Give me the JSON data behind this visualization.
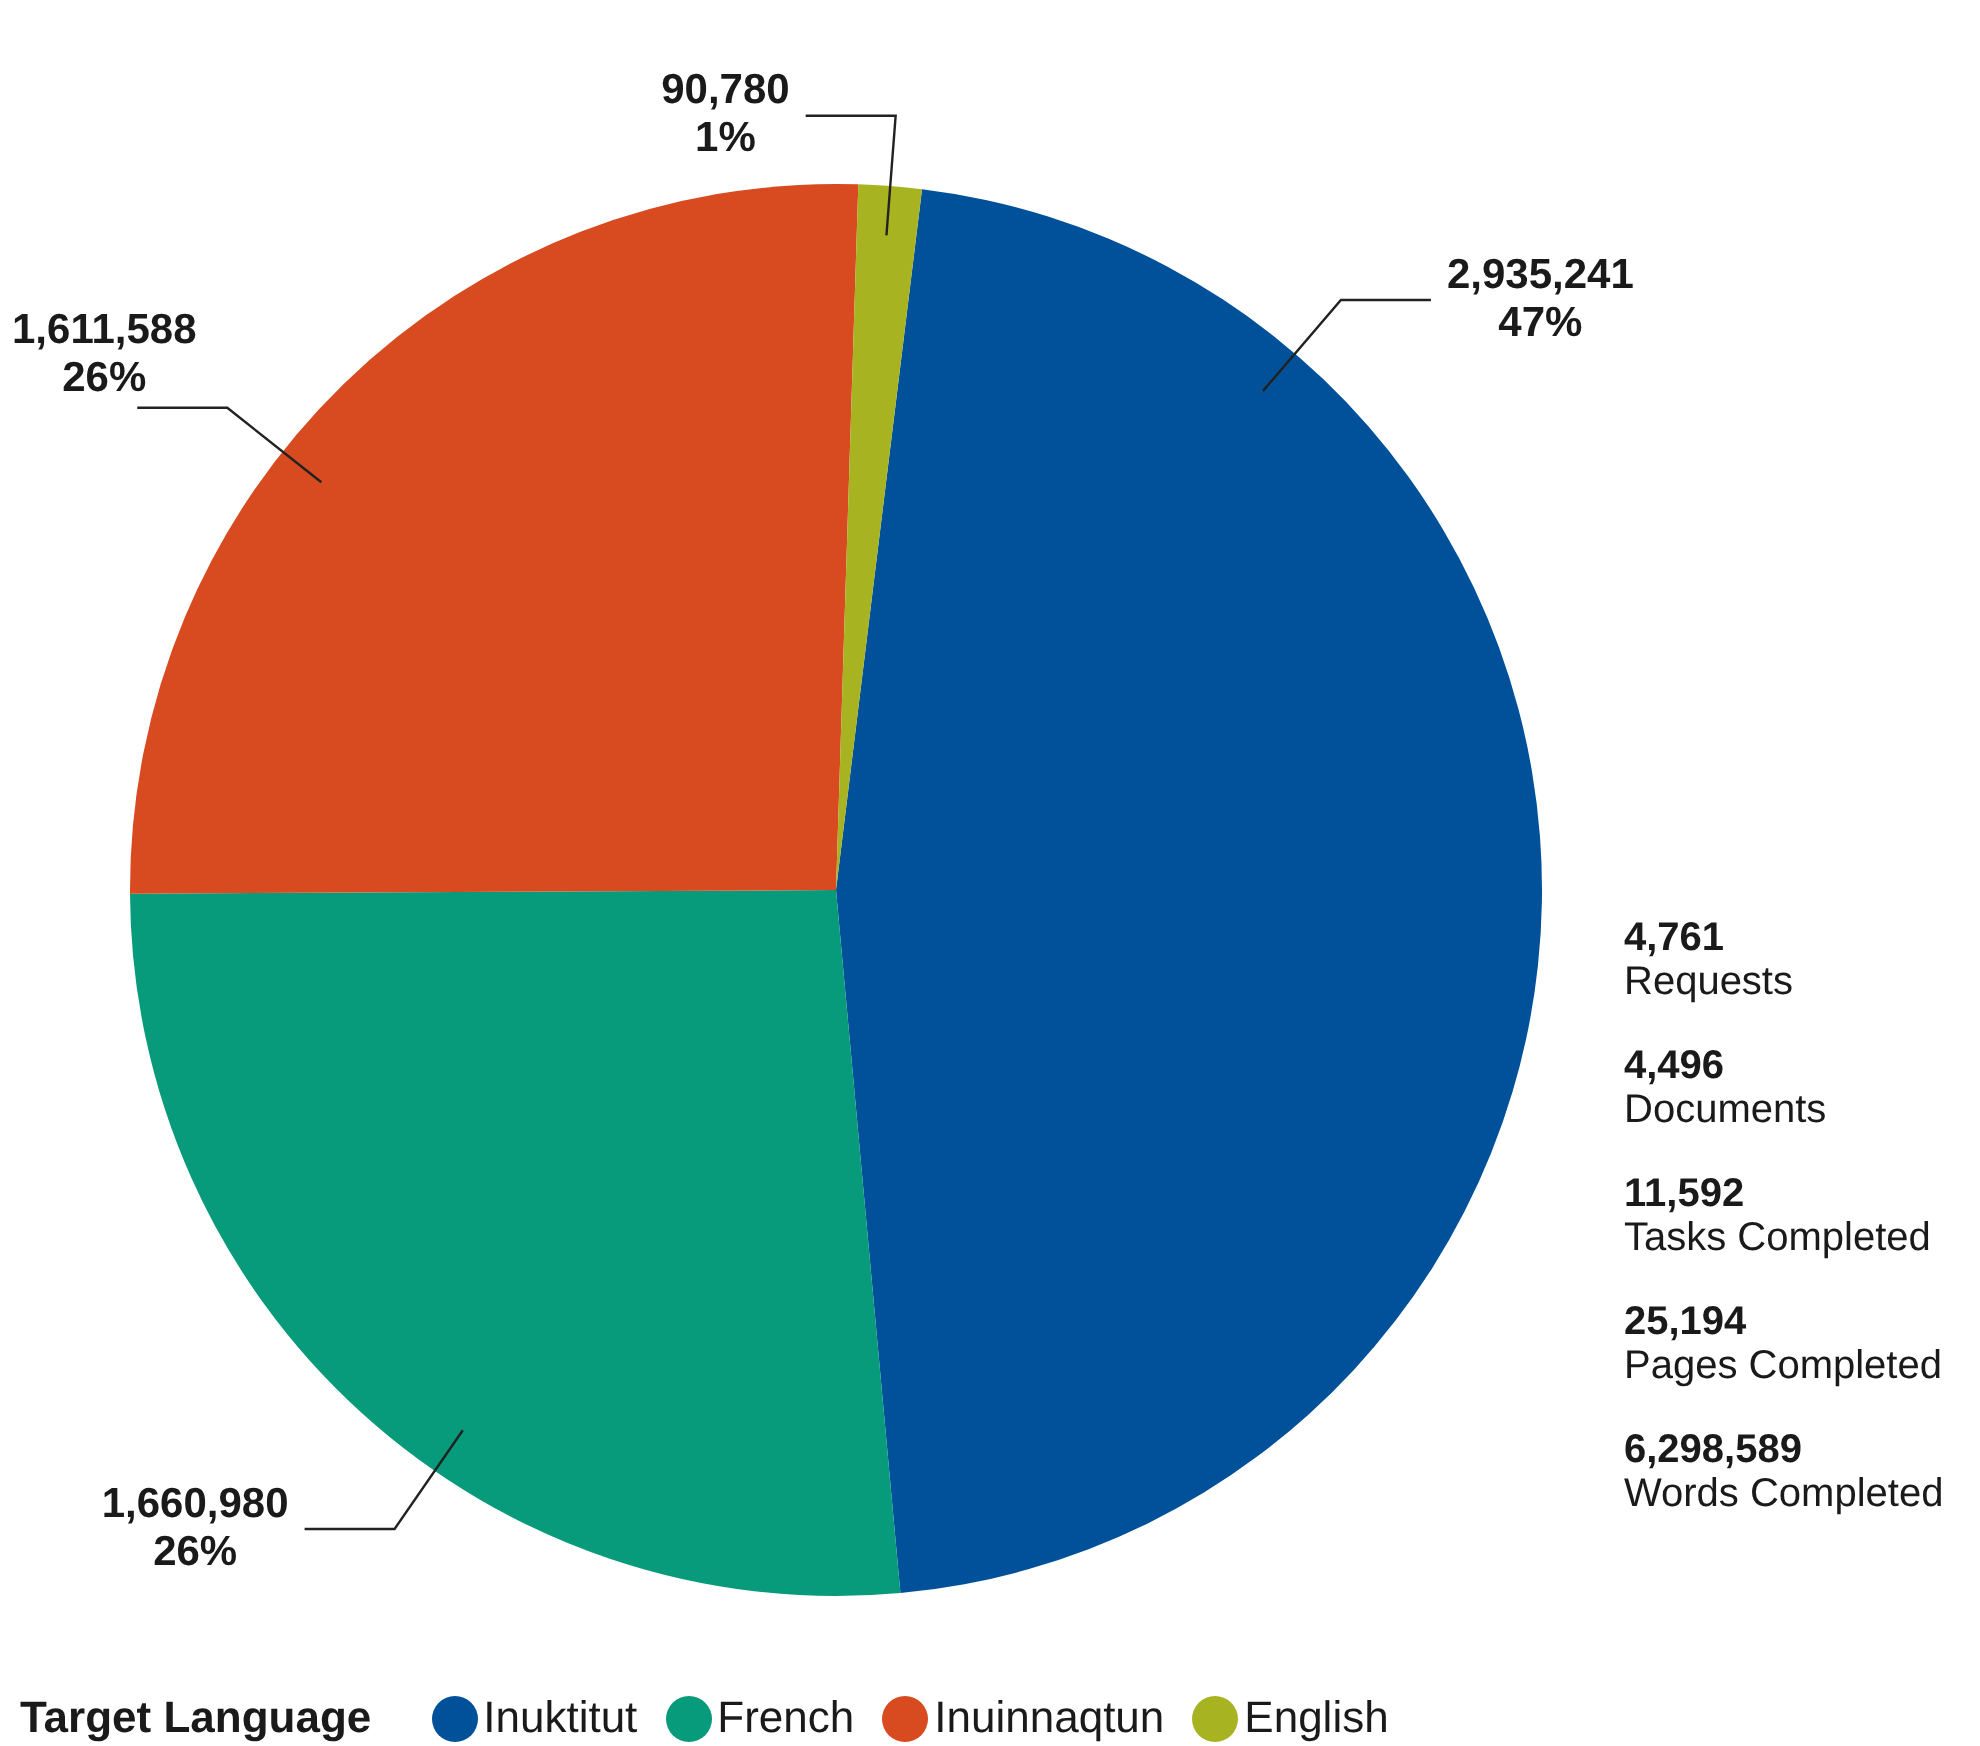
{
  "chart_data": {
    "type": "pie",
    "legend_title": "Target Language",
    "legend": "bottom",
    "categories": [
      "Inuktitut",
      "French",
      "Inuinnaqtun",
      "English"
    ],
    "values": [
      2935241,
      1660980,
      1611588,
      90780
    ],
    "colors": [
      "#005199",
      "#079a7b",
      "#d84a20",
      "#a8b321"
    ],
    "value_labels": [
      "2,935,241\n47%",
      "1,660,980\n26%",
      "1,611,588\n26%",
      "90,780\n1%"
    ],
    "annotations": [
      "4,761\nRequests",
      "4,496\nDocuments",
      "11,592\nTasks Completed",
      "25,194\nPages Completed",
      "6,298,589\nWords Completed"
    ]
  }
}
